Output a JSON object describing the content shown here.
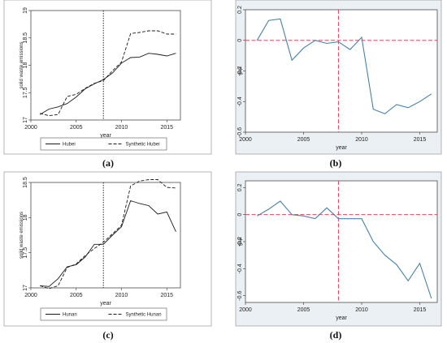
{
  "colors": {
    "panel_bg": "#ffffff",
    "plot_bg_gray": "#eaf0f3",
    "gap_line": "#4a80a8",
    "ref_dashed": "#e0455a",
    "line_black": "#1a1a1a"
  },
  "chart_data": [
    {
      "caption": "(a)",
      "type": "line",
      "xlabel": "year",
      "ylabel": "solid waste emissions",
      "xlim": [
        2000,
        2016.5
      ],
      "ylim": [
        17,
        19
      ],
      "xticks": [
        2000,
        2005,
        2010,
        2015
      ],
      "yticks": [
        17,
        17.5,
        18,
        18.5,
        19
      ],
      "ytick_labels": [
        "17",
        "17.5",
        "18",
        "18.5",
        "19"
      ],
      "treatment_year": 2008,
      "background": "white",
      "legend": "bottom",
      "series": [
        {
          "name": "Hubei",
          "style": "solid",
          "x": [
            2001,
            2002,
            2003,
            2004,
            2005,
            2006,
            2007,
            2008,
            2009,
            2010,
            2011,
            2012,
            2013,
            2014,
            2015,
            2016
          ],
          "y": [
            17.1,
            17.2,
            17.24,
            17.3,
            17.42,
            17.57,
            17.66,
            17.74,
            17.86,
            18.04,
            18.14,
            18.15,
            18.22,
            18.2,
            18.17,
            18.22
          ]
        },
        {
          "name": "Synthetic Hubei",
          "style": "dashed",
          "x": [
            2001,
            2002,
            2003,
            2004,
            2005,
            2006,
            2007,
            2008,
            2009,
            2010,
            2011,
            2012,
            2013,
            2014,
            2015,
            2016
          ],
          "y": [
            17.12,
            17.08,
            17.1,
            17.43,
            17.47,
            17.58,
            17.67,
            17.72,
            17.9,
            18.06,
            18.58,
            18.6,
            18.63,
            18.63,
            18.57,
            18.57
          ]
        }
      ]
    },
    {
      "caption": "(b)",
      "type": "line",
      "xlabel": "year",
      "ylabel": "gap",
      "xlim": [
        2000,
        2016.5
      ],
      "ylim": [
        -0.6,
        0.2
      ],
      "xticks": [
        2000,
        2005,
        2010,
        2015
      ],
      "yticks": [
        0.2,
        0,
        -0.2,
        -0.4,
        -0.6
      ],
      "ytick_labels": [
        "0.2",
        "0",
        "-0.2",
        "-0.4",
        "-0.6"
      ],
      "treatment_year": 2008,
      "zero_line": 0,
      "background": "gray",
      "series": [
        {
          "style": "solid",
          "x": [
            2001,
            2002,
            2003,
            2004,
            2005,
            2006,
            2007,
            2008,
            2009,
            2010,
            2011,
            2012,
            2013,
            2014,
            2015,
            2016
          ],
          "y": [
            0.0,
            0.13,
            0.14,
            -0.13,
            -0.05,
            0.0,
            -0.02,
            -0.01,
            -0.06,
            0.02,
            -0.45,
            -0.48,
            -0.42,
            -0.44,
            -0.4,
            -0.35
          ]
        }
      ]
    },
    {
      "caption": "(c)",
      "type": "line",
      "xlabel": "year",
      "ylabel": "solid waste emissions",
      "xlim": [
        2000,
        2016.5
      ],
      "ylim": [
        17,
        18.5
      ],
      "xticks": [
        2000,
        2005,
        2010,
        2015
      ],
      "yticks": [
        17,
        17.5,
        18,
        18.5
      ],
      "ytick_labels": [
        "17",
        "17.5",
        "18",
        "18.5"
      ],
      "treatment_year": 2008,
      "background": "white",
      "legend": "bottom",
      "series": [
        {
          "name": "Hunan",
          "style": "solid",
          "x": [
            2001,
            2002,
            2003,
            2004,
            2005,
            2006,
            2007,
            2008,
            2009,
            2010,
            2011,
            2012,
            2013,
            2014,
            2015,
            2016
          ],
          "y": [
            17.03,
            17.02,
            17.13,
            17.3,
            17.33,
            17.44,
            17.62,
            17.62,
            17.75,
            17.87,
            18.24,
            18.2,
            18.17,
            18.05,
            18.08,
            17.8
          ]
        },
        {
          "name": "Synthetic Hunan",
          "style": "dashed",
          "x": [
            2001,
            2002,
            2003,
            2004,
            2005,
            2006,
            2007,
            2008,
            2009,
            2010,
            2011,
            2012,
            2013,
            2014,
            2015,
            2016
          ],
          "y": [
            17.03,
            16.99,
            17.03,
            17.29,
            17.34,
            17.46,
            17.56,
            17.65,
            17.77,
            17.89,
            18.45,
            18.52,
            18.54,
            18.54,
            18.43,
            18.42
          ]
        }
      ]
    },
    {
      "caption": "(d)",
      "type": "line",
      "xlabel": "year",
      "ylabel": "gap",
      "xlim": [
        2000,
        2016.5
      ],
      "ylim": [
        -0.65,
        0.25
      ],
      "xticks": [
        2000,
        2005,
        2010,
        2015
      ],
      "yticks": [
        0.2,
        0,
        -0.2,
        -0.4,
        -0.6
      ],
      "ytick_labels": [
        "0.2",
        "0",
        "-0.2",
        "-0.4",
        "-0.6"
      ],
      "treatment_year": 2008,
      "zero_line": 0,
      "background": "gray",
      "series": [
        {
          "style": "solid",
          "x": [
            2001,
            2002,
            2003,
            2004,
            2005,
            2006,
            2007,
            2008,
            2009,
            2010,
            2011,
            2012,
            2013,
            2014,
            2015,
            2016
          ],
          "y": [
            -0.01,
            0.04,
            0.1,
            0.0,
            -0.01,
            -0.03,
            0.05,
            -0.03,
            -0.03,
            -0.03,
            -0.2,
            -0.3,
            -0.37,
            -0.49,
            -0.36,
            -0.62
          ]
        }
      ]
    }
  ]
}
